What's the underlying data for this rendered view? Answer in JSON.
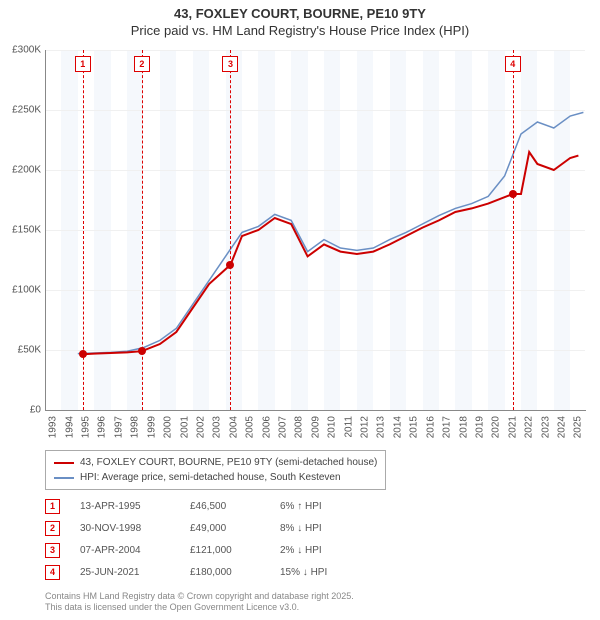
{
  "title": {
    "line1": "43, FOXLEY COURT, BOURNE, PE10 9TY",
    "line2": "Price paid vs. HM Land Registry's House Price Index (HPI)"
  },
  "chart": {
    "type": "line",
    "ylim": [
      0,
      300000
    ],
    "ytick_step": 50000,
    "y_labels": [
      "£0",
      "£50K",
      "£100K",
      "£150K",
      "£200K",
      "£250K",
      "£300K"
    ],
    "xlim": [
      1993,
      2025.9
    ],
    "x_labels": [
      "1993",
      "1994",
      "1995",
      "1996",
      "1997",
      "1998",
      "1999",
      "2000",
      "2001",
      "2002",
      "2003",
      "2004",
      "2005",
      "2006",
      "2007",
      "2008",
      "2009",
      "2010",
      "2011",
      "2012",
      "2013",
      "2014",
      "2015",
      "2016",
      "2017",
      "2018",
      "2019",
      "2020",
      "2021",
      "2022",
      "2023",
      "2024",
      "2025"
    ],
    "background_color": "#ffffff",
    "band_color": "#f5f8fc",
    "grid_color": "#f0f0f0",
    "series": {
      "property": {
        "color": "#cc0000",
        "width": 2,
        "label": "43, FOXLEY COURT, BOURNE, PE10 9TY (semi-detached house)",
        "points": [
          [
            1995.3,
            46500
          ],
          [
            1996,
            47000
          ],
          [
            1997,
            47500
          ],
          [
            1998,
            48000
          ],
          [
            1998.9,
            49000
          ],
          [
            2000,
            55000
          ],
          [
            2001,
            65000
          ],
          [
            2002,
            85000
          ],
          [
            2003,
            105000
          ],
          [
            2004.3,
            121000
          ],
          [
            2005,
            145000
          ],
          [
            2006,
            150000
          ],
          [
            2007,
            160000
          ],
          [
            2008,
            155000
          ],
          [
            2009,
            128000
          ],
          [
            2010,
            138000
          ],
          [
            2011,
            132000
          ],
          [
            2012,
            130000
          ],
          [
            2013,
            132000
          ],
          [
            2014,
            138000
          ],
          [
            2015,
            145000
          ],
          [
            2016,
            152000
          ],
          [
            2017,
            158000
          ],
          [
            2018,
            165000
          ],
          [
            2019,
            168000
          ],
          [
            2020,
            172000
          ],
          [
            2021.5,
            180000
          ],
          [
            2022,
            180000
          ],
          [
            2022.5,
            215000
          ],
          [
            2023,
            205000
          ],
          [
            2024,
            200000
          ],
          [
            2025,
            210000
          ],
          [
            2025.5,
            212000
          ]
        ]
      },
      "hpi": {
        "color": "#6a8fc4",
        "width": 1.5,
        "label": "HPI: Average price, semi-detached house, South Kesteven",
        "points": [
          [
            1995,
            47000
          ],
          [
            1996,
            47500
          ],
          [
            1997,
            48000
          ],
          [
            1998,
            49000
          ],
          [
            1999,
            52000
          ],
          [
            2000,
            58000
          ],
          [
            2001,
            68000
          ],
          [
            2002,
            88000
          ],
          [
            2003,
            108000
          ],
          [
            2004,
            128000
          ],
          [
            2005,
            148000
          ],
          [
            2006,
            153000
          ],
          [
            2007,
            163000
          ],
          [
            2008,
            158000
          ],
          [
            2009,
            132000
          ],
          [
            2010,
            142000
          ],
          [
            2011,
            135000
          ],
          [
            2012,
            133000
          ],
          [
            2013,
            135000
          ],
          [
            2014,
            142000
          ],
          [
            2015,
            148000
          ],
          [
            2016,
            155000
          ],
          [
            2017,
            162000
          ],
          [
            2018,
            168000
          ],
          [
            2019,
            172000
          ],
          [
            2020,
            178000
          ],
          [
            2021,
            195000
          ],
          [
            2022,
            230000
          ],
          [
            2023,
            240000
          ],
          [
            2024,
            235000
          ],
          [
            2025,
            245000
          ],
          [
            2025.8,
            248000
          ]
        ]
      }
    },
    "sale_markers": [
      {
        "n": "1",
        "x": 1995.3,
        "y": 46500
      },
      {
        "n": "2",
        "x": 1998.9,
        "y": 49000
      },
      {
        "n": "3",
        "x": 2004.3,
        "y": 121000
      },
      {
        "n": "4",
        "x": 2021.5,
        "y": 180000
      }
    ]
  },
  "legend": {
    "items": [
      {
        "color": "#cc0000",
        "label": "43, FOXLEY COURT, BOURNE, PE10 9TY (semi-detached house)"
      },
      {
        "color": "#6a8fc4",
        "label": "HPI: Average price, semi-detached house, South Kesteven"
      }
    ]
  },
  "sales": [
    {
      "n": "1",
      "date": "13-APR-1995",
      "price": "£46,500",
      "pct": "6% ↑ HPI"
    },
    {
      "n": "2",
      "date": "30-NOV-1998",
      "price": "£49,000",
      "pct": "8% ↓ HPI"
    },
    {
      "n": "3",
      "date": "07-APR-2004",
      "price": "£121,000",
      "pct": "2% ↓ HPI"
    },
    {
      "n": "4",
      "date": "25-JUN-2021",
      "price": "£180,000",
      "pct": "15% ↓ HPI"
    }
  ],
  "footnote": {
    "line1": "Contains HM Land Registry data © Crown copyright and database right 2025.",
    "line2": "This data is licensed under the Open Government Licence v3.0."
  }
}
